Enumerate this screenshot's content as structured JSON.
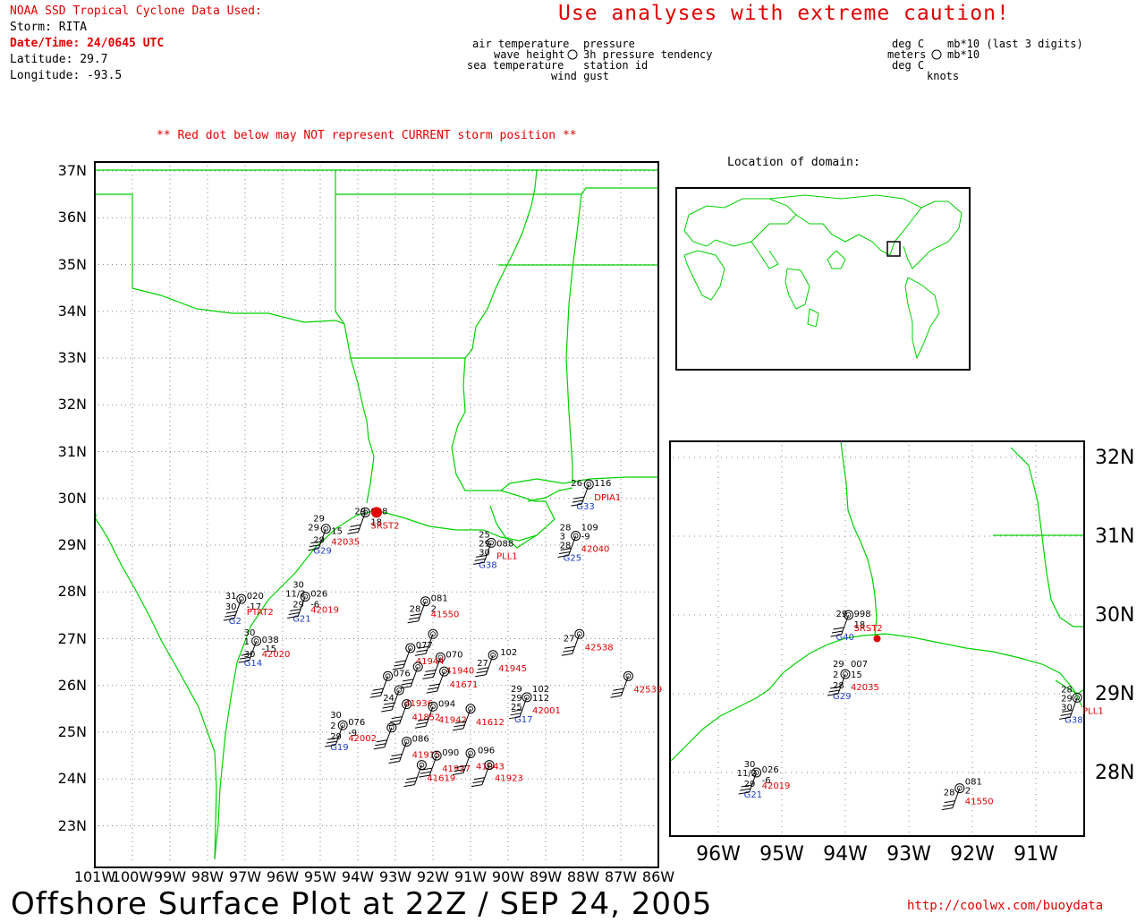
{
  "header": {
    "source": "NOAA SSD Tropical Cyclone Data Used:",
    "storm": "Storm: RITA",
    "datetime": "Date/Time: 24/0645 UTC",
    "latitude": "Latitude: 29.7",
    "longitude": "Longitude: -93.5",
    "caution": "Use analyses with extreme caution!",
    "red_dot_note": "** Red dot below may NOT represent CURRENT storm position **"
  },
  "legend": {
    "air_temp": "air temperature",
    "wave_height": "wave height",
    "sea_temp": "sea temperature",
    "pressure": "pressure",
    "tendency": "3h pressure tendency",
    "station_id": "station id",
    "wind_gust": "wind gust",
    "deg_c_1": "deg C",
    "meters": "meters",
    "deg_c_2": "deg C",
    "mb_1": "mb*10 (last 3 digits)",
    "mb_2": "mb*10",
    "knots": "knots"
  },
  "inset": {
    "title": "Location of domain:"
  },
  "axes": {
    "main_lat": [
      "37N",
      "36N",
      "35N",
      "34N",
      "33N",
      "32N",
      "31N",
      "30N",
      "29N",
      "28N",
      "27N",
      "26N",
      "25N",
      "24N",
      "23N"
    ],
    "main_lon": [
      "101W",
      "100W",
      "99W",
      "98W",
      "97W",
      "96W",
      "95W",
      "94W",
      "93W",
      "92W",
      "91W",
      "90W",
      "89W",
      "88W",
      "87W",
      "86W"
    ],
    "zoom_lat": [
      "32N",
      "31N",
      "30N",
      "29N",
      "28N"
    ],
    "zoom_lon": [
      "96W",
      "95W",
      "94W",
      "93W",
      "92W",
      "91W"
    ]
  },
  "footer": {
    "title": "Offshore Surface Plot at 22Z / SEP 24, 2005",
    "url": "http://coolwx.com/buoydata"
  },
  "colors": {
    "coast": "#00d200",
    "red": "#e00000",
    "blue": "#1a3cc8"
  },
  "storm_position": {
    "lat": 29.7,
    "lon": -93.5
  },
  "main_stations": [
    {
      "lat": 29.7,
      "lon": -93.8,
      "black": [
        [
          "29",
          "-12",
          "-2"
        ],
        [
          "998",
          "6",
          "-2"
        ],
        [
          "18",
          "6",
          "10"
        ]
      ],
      "id": "SRST2",
      "gust": ""
    },
    {
      "lat": 30.3,
      "lon": -87.85,
      "black": [
        [
          "26",
          "-20",
          "-2"
        ],
        [
          "116",
          "6",
          "-2"
        ]
      ],
      "id": "DPIA1",
      "gust": "G33"
    },
    {
      "lat": 29.35,
      "lon": -94.85,
      "black": [
        [
          "29",
          "-14",
          "-12"
        ],
        [
          "29",
          "-20",
          "-2"
        ],
        [
          "15",
          "6",
          "2"
        ],
        [
          "29",
          "-14",
          "12"
        ]
      ],
      "id": "42035",
      "gust": "G29"
    },
    {
      "lat": 29.05,
      "lon": -90.45,
      "black": [
        [
          "25",
          "-14",
          "-10"
        ],
        [
          "29",
          "-14",
          "0"
        ],
        [
          "30",
          "-14",
          "10"
        ],
        [
          "088",
          "6",
          "0"
        ]
      ],
      "id": "PLL1",
      "gust": "G38"
    },
    {
      "lat": 29.2,
      "lon": -88.2,
      "black": [
        [
          "28",
          "-18",
          "-10"
        ],
        [
          "3",
          "-18",
          "0"
        ],
        [
          "109",
          "6",
          "-10"
        ],
        [
          "-9",
          "6",
          "0"
        ],
        [
          "28",
          "-18",
          "10"
        ]
      ],
      "id": "42040",
      "gust": "G25"
    },
    {
      "lat": 27.85,
      "lon": -97.1,
      "black": [
        [
          "31",
          "-18",
          "-4"
        ],
        [
          "30",
          "-18",
          "8"
        ],
        [
          "020",
          "6",
          "-4"
        ],
        [
          "-17",
          "6",
          "8"
        ]
      ],
      "id": "PTAT2",
      "gust": "G2"
    },
    {
      "lat": 27.9,
      "lon": -95.4,
      "black": [
        [
          "30",
          "-14",
          "-14"
        ],
        [
          "11/2",
          "-22",
          "-4"
        ],
        [
          "29",
          "-14",
          "8"
        ],
        [
          "026",
          "6",
          "-4"
        ],
        [
          "-6",
          "6",
          "8"
        ]
      ],
      "id": "42019",
      "gust": "G21"
    },
    {
      "lat": 27.8,
      "lon": -92.2,
      "black": [
        [
          "28",
          "-18",
          "8"
        ],
        [
          "081",
          "6",
          "-4"
        ],
        [
          "2",
          "6",
          "8"
        ]
      ],
      "id": "41550",
      "gust": ""
    },
    {
      "lat": 26.95,
      "lon": -96.7,
      "black": [
        [
          "30",
          "-14",
          "-10"
        ],
        [
          "1",
          "-14",
          "0"
        ],
        [
          "30",
          "-14",
          "14"
        ],
        [
          "038",
          "6",
          "-2"
        ],
        [
          "-15",
          "6",
          "8"
        ]
      ],
      "id": "42020",
      "gust": "G14"
    },
    {
      "lat": 27.1,
      "lon": -88.1,
      "black": [
        [
          "27",
          "-18",
          "4"
        ]
      ],
      "id": "42538",
      "gust": ""
    },
    {
      "lat": 26.2,
      "lon": -86.8,
      "black": [],
      "id": "42539",
      "gust": ""
    },
    {
      "lat": 26.65,
      "lon": -90.4,
      "black": [
        [
          "27",
          "-18",
          "8"
        ],
        [
          "102",
          "8",
          "-4"
        ]
      ],
      "id": "41945",
      "gust": ""
    },
    {
      "lat": 26.6,
      "lon": -91.8,
      "black": [
        [
          "070",
          "6",
          "-4"
        ]
      ],
      "id": "41940",
      "gust": ""
    },
    {
      "lat": 26.8,
      "lon": -92.6,
      "black": [
        [
          "077",
          "6",
          "-4"
        ]
      ],
      "id": "41944",
      "gust": ""
    },
    {
      "lat": 27.1,
      "lon": -92.0,
      "black": [],
      "id": "",
      "gust": ""
    },
    {
      "lat": 26.4,
      "lon": -92.4,
      "black": [],
      "id": "",
      "gust": ""
    },
    {
      "lat": 26.3,
      "lon": -91.7,
      "black": [],
      "id": "41671",
      "gust": ""
    },
    {
      "lat": 26.2,
      "lon": -93.2,
      "black": [
        [
          "076",
          "6",
          "-4"
        ]
      ],
      "id": "",
      "gust": ""
    },
    {
      "lat": 25.9,
      "lon": -92.9,
      "black": [
        [
          "24",
          "-18",
          "8"
        ]
      ],
      "id": "41936",
      "gust": ""
    },
    {
      "lat": 25.6,
      "lon": -92.7,
      "black": [],
      "id": "41852",
      "gust": ""
    },
    {
      "lat": 25.55,
      "lon": -92.0,
      "black": [
        [
          "094",
          "6",
          "-4"
        ]
      ],
      "id": "41942",
      "gust": ""
    },
    {
      "lat": 25.5,
      "lon": -91.0,
      "black": [],
      "id": "41612",
      "gust": ""
    },
    {
      "lat": 25.75,
      "lon": -89.5,
      "black": [
        [
          "29",
          "-18",
          "-10"
        ],
        [
          "29",
          "-18",
          "0"
        ],
        [
          "25",
          "-18",
          "10"
        ],
        [
          "102",
          "6",
          "-10"
        ],
        [
          "112",
          "6",
          "0"
        ]
      ],
      "id": "42001",
      "gust": "G17"
    },
    {
      "lat": 25.15,
      "lon": -94.4,
      "black": [
        [
          "30",
          "-14",
          "-12"
        ],
        [
          "2",
          "-14",
          "0"
        ],
        [
          "29",
          "-14",
          "12"
        ],
        [
          "076",
          "6",
          "-4"
        ],
        [
          "-9",
          "6",
          "8"
        ]
      ],
      "id": "42002",
      "gust": "G19"
    },
    {
      "lat": 25.1,
      "lon": -93.1,
      "black": [],
      "id": "",
      "gust": ""
    },
    {
      "lat": 24.8,
      "lon": -92.7,
      "black": [
        [
          "086",
          "6",
          "-4"
        ]
      ],
      "id": "41915",
      "gust": ""
    },
    {
      "lat": 24.5,
      "lon": -91.9,
      "black": [
        [
          "090",
          "6",
          "-4"
        ]
      ],
      "id": "41937",
      "gust": ""
    },
    {
      "lat": 24.55,
      "lon": -91.0,
      "black": [
        [
          "096",
          "8",
          "-4"
        ]
      ],
      "id": "41943",
      "gust": ""
    },
    {
      "lat": 24.3,
      "lon": -92.3,
      "black": [],
      "id": "41619",
      "gust": ""
    },
    {
      "lat": 24.3,
      "lon": -90.5,
      "black": [],
      "id": "41923",
      "gust": ""
    }
  ],
  "zoom_stations": [
    {
      "lat": 30.0,
      "lon": -93.95,
      "black": [
        [
          "29",
          "-14",
          "-2"
        ],
        [
          "998",
          "6",
          "-2"
        ],
        [
          "18",
          "6",
          "10"
        ]
      ],
      "id": "SRST2",
      "gust": "G40"
    },
    {
      "lat": 29.25,
      "lon": -94.0,
      "black": [
        [
          "29",
          "-14",
          "-12"
        ],
        [
          "2",
          "-14",
          "0"
        ],
        [
          "28",
          "-14",
          "12"
        ],
        [
          "007",
          "6",
          "-12"
        ],
        [
          "15",
          "6",
          "0"
        ]
      ],
      "id": "42035",
      "gust": "G29"
    },
    {
      "lat": 28.95,
      "lon": -90.35,
      "black": [
        [
          "28",
          "-18",
          "-10"
        ],
        [
          "29",
          "-18",
          "0"
        ],
        [
          "30",
          "-18",
          "10"
        ]
      ],
      "id": "PLL1",
      "gust": "G38"
    },
    {
      "lat": 28.0,
      "lon": -95.4,
      "black": [
        [
          "30",
          "-14",
          "-10"
        ],
        [
          "11/2",
          "-22",
          "0"
        ],
        [
          "29",
          "-14",
          "12"
        ],
        [
          "026",
          "6",
          "-4"
        ],
        [
          "-6",
          "6",
          "8"
        ]
      ],
      "id": "42019",
      "gust": "G21"
    },
    {
      "lat": 27.8,
      "lon": -92.2,
      "black": [
        [
          "28",
          "-18",
          "4"
        ],
        [
          "081",
          "6",
          "-8"
        ],
        [
          "2",
          "6",
          "2"
        ]
      ],
      "id": "41550",
      "gust": ""
    }
  ]
}
